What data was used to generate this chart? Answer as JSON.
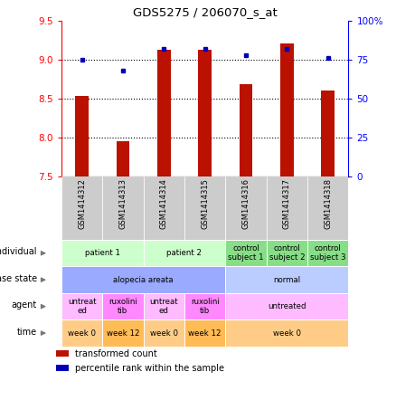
{
  "title": "GDS5275 / 206070_s_at",
  "samples": [
    "GSM1414312",
    "GSM1414313",
    "GSM1414314",
    "GSM1414315",
    "GSM1414316",
    "GSM1414317",
    "GSM1414318"
  ],
  "transformed_count": [
    8.53,
    7.95,
    9.12,
    9.12,
    8.68,
    9.2,
    8.6
  ],
  "percentile_rank": [
    75,
    68,
    82,
    82,
    78,
    82,
    76
  ],
  "ylim_left": [
    7.5,
    9.5
  ],
  "ylim_right": [
    0,
    100
  ],
  "yticks_left": [
    7.5,
    8.0,
    8.5,
    9.0,
    9.5
  ],
  "yticks_right": [
    0,
    25,
    50,
    75,
    100
  ],
  "ytick_labels_right": [
    "0",
    "25",
    "50",
    "75",
    "100%"
  ],
  "bar_color": "#bb1100",
  "dot_color": "#0000bb",
  "bar_bottom": 7.5,
  "annotations": {
    "individual": {
      "label": "individual",
      "groups": [
        {
          "cols": [
            0,
            1
          ],
          "text": "patient 1",
          "color": "#ccffcc"
        },
        {
          "cols": [
            2,
            3
          ],
          "text": "patient 2",
          "color": "#ccffcc"
        },
        {
          "cols": [
            4
          ],
          "text": "control\nsubject 1",
          "color": "#88dd88"
        },
        {
          "cols": [
            5
          ],
          "text": "control\nsubject 2",
          "color": "#88dd88"
        },
        {
          "cols": [
            6
          ],
          "text": "control\nsubject 3",
          "color": "#88dd88"
        }
      ]
    },
    "disease_state": {
      "label": "disease state",
      "groups": [
        {
          "cols": [
            0,
            1,
            2,
            3
          ],
          "text": "alopecia areata",
          "color": "#99aaff"
        },
        {
          "cols": [
            4,
            5,
            6
          ],
          "text": "normal",
          "color": "#bbccff"
        }
      ]
    },
    "agent": {
      "label": "agent",
      "groups": [
        {
          "cols": [
            0
          ],
          "text": "untreat\ned",
          "color": "#ffbbff"
        },
        {
          "cols": [
            1
          ],
          "text": "ruxolini\ntib",
          "color": "#ff88ff"
        },
        {
          "cols": [
            2
          ],
          "text": "untreat\ned",
          "color": "#ffbbff"
        },
        {
          "cols": [
            3
          ],
          "text": "ruxolini\ntib",
          "color": "#ff88ff"
        },
        {
          "cols": [
            4,
            5,
            6
          ],
          "text": "untreated",
          "color": "#ffbbff"
        }
      ]
    },
    "time": {
      "label": "time",
      "groups": [
        {
          "cols": [
            0
          ],
          "text": "week 0",
          "color": "#ffcc88"
        },
        {
          "cols": [
            1
          ],
          "text": "week 12",
          "color": "#ffbb55"
        },
        {
          "cols": [
            2
          ],
          "text": "week 0",
          "color": "#ffcc88"
        },
        {
          "cols": [
            3
          ],
          "text": "week 12",
          "color": "#ffbb55"
        },
        {
          "cols": [
            4,
            5,
            6
          ],
          "text": "week 0",
          "color": "#ffcc88"
        }
      ]
    }
  },
  "legend": [
    {
      "color": "#bb1100",
      "label": "transformed count"
    },
    {
      "color": "#0000bb",
      "label": "percentile rank within the sample"
    }
  ]
}
